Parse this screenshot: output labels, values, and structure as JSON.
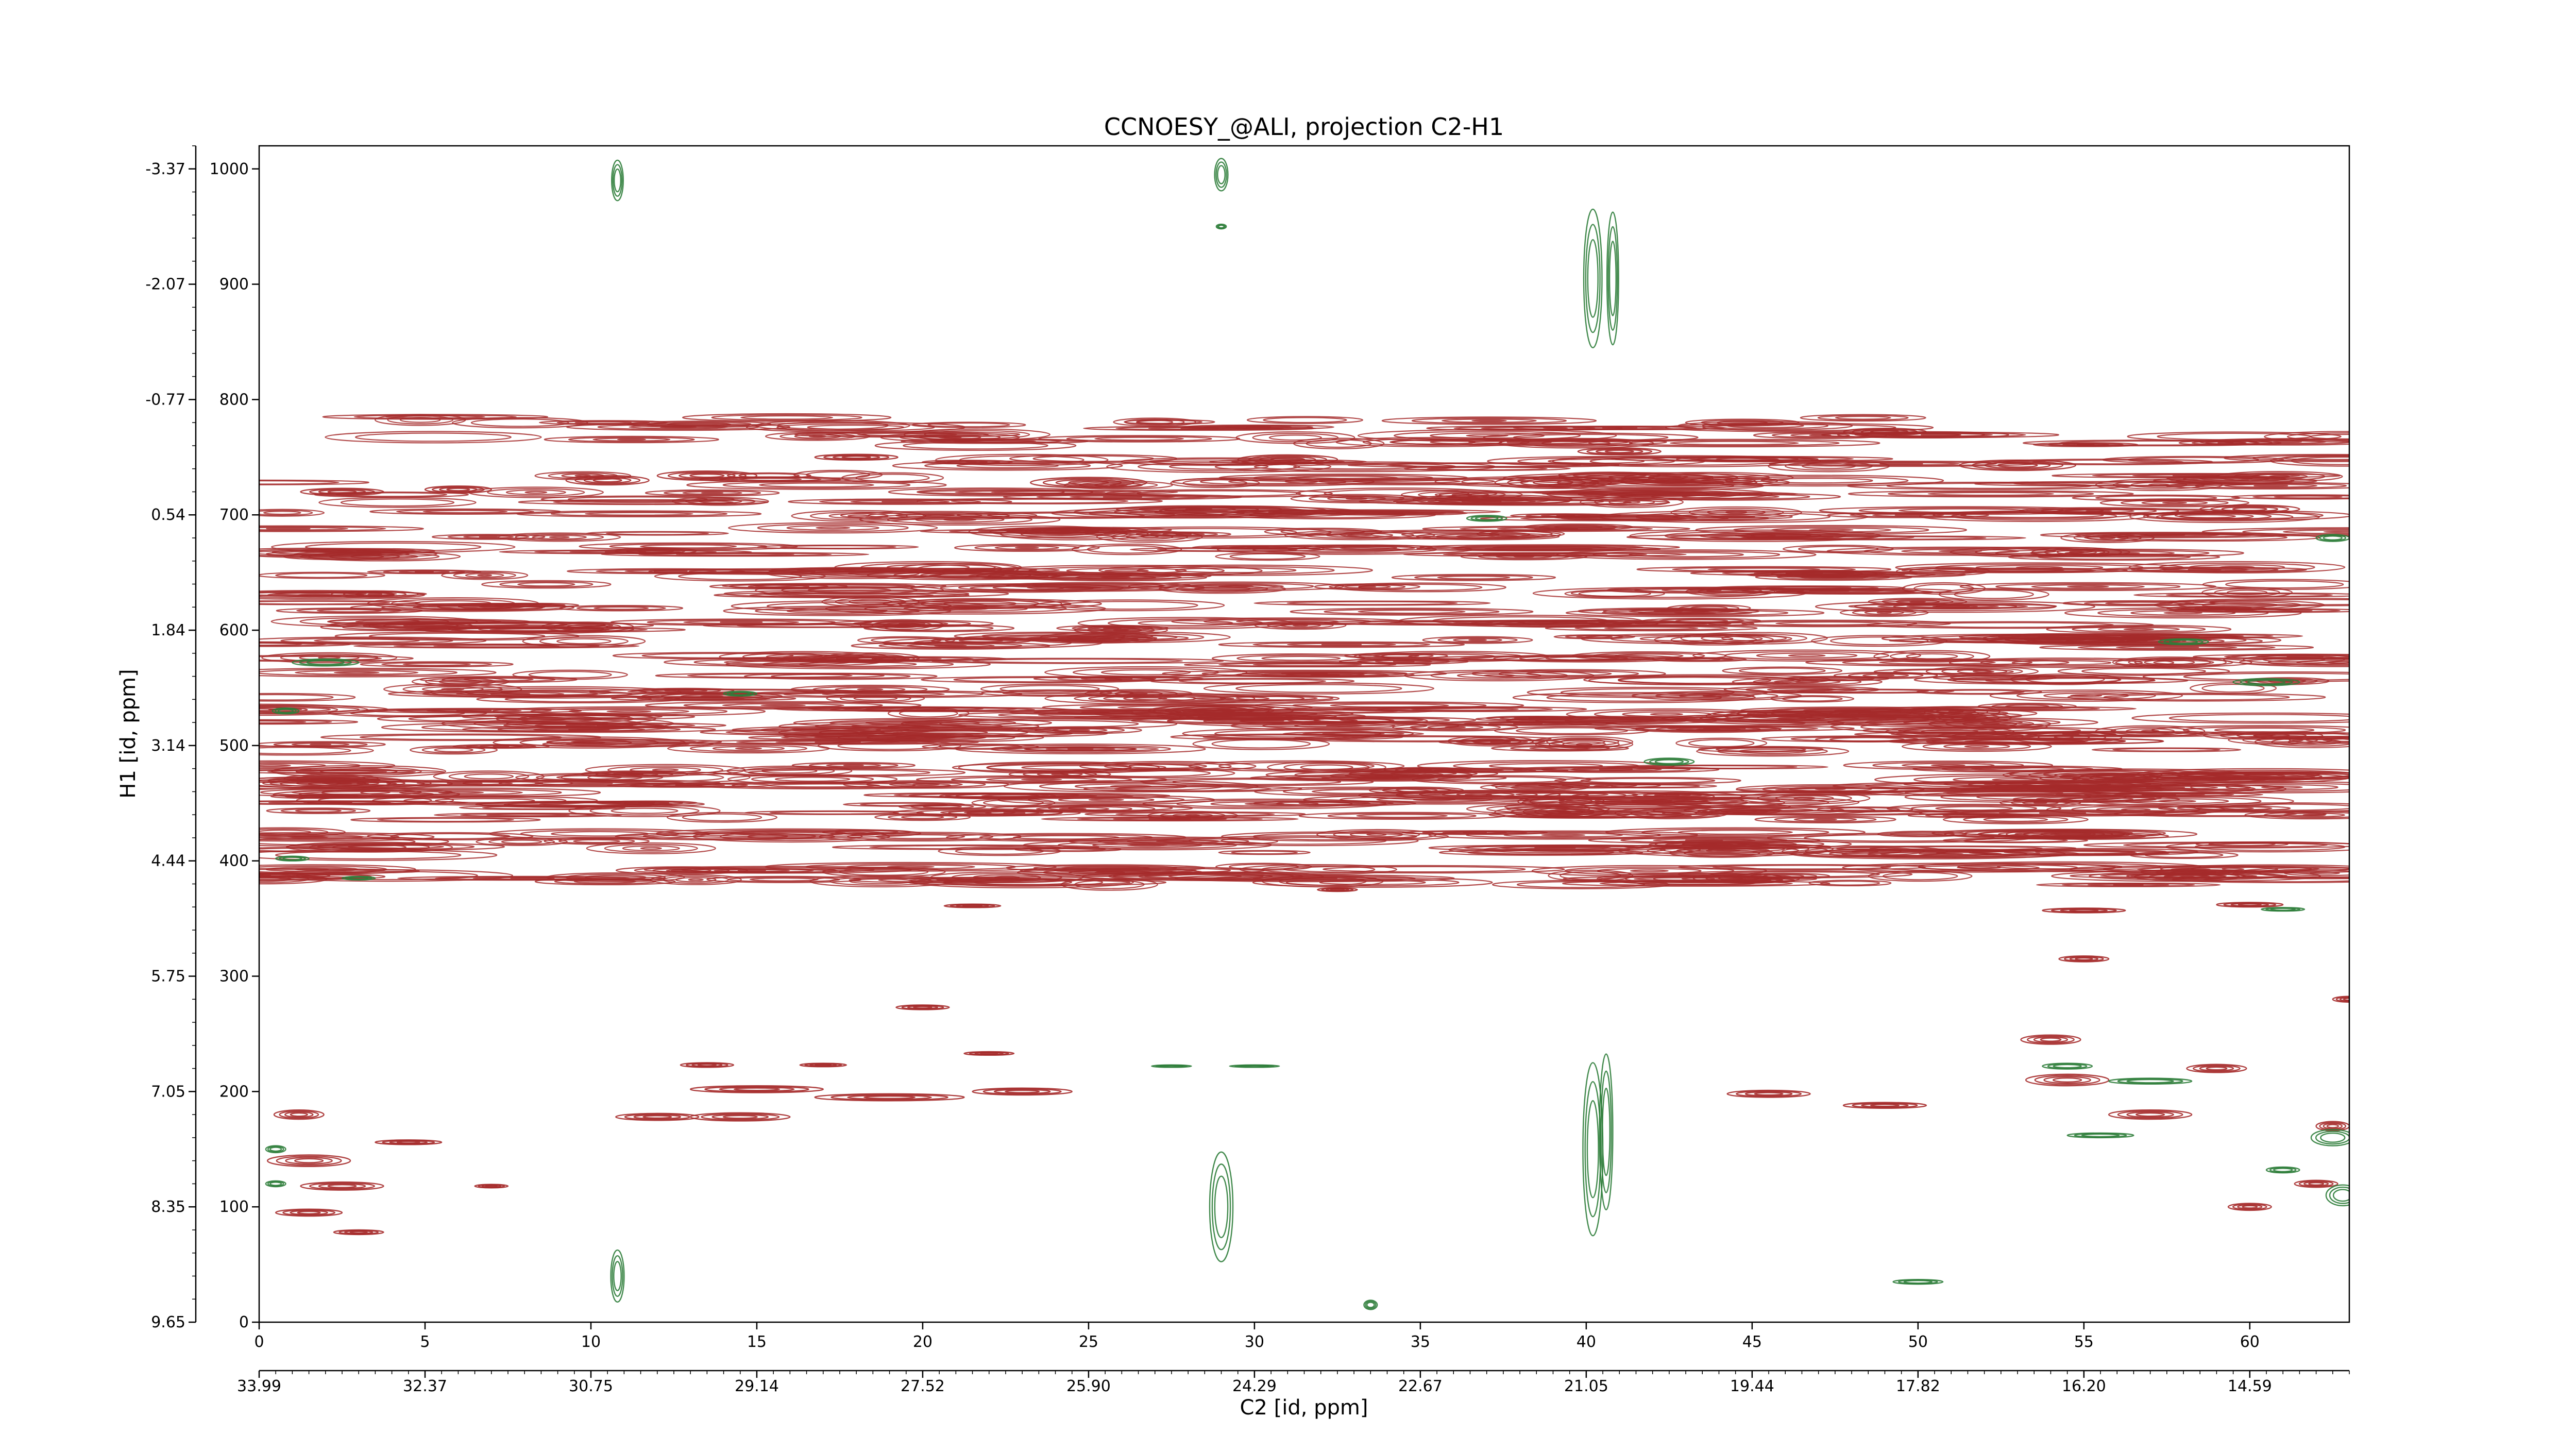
{
  "chart_data": {
    "type": "contour",
    "title": "CCNOESY_@ALI, projection C2-H1",
    "xlabel": "C2 [id, ppm]",
    "ylabel": "H1 [id, ppm]",
    "x_index_range": [
      0,
      63
    ],
    "y_index_range": [
      0,
      1020
    ],
    "x_index_ticks": [
      "0",
      "5",
      "10",
      "15",
      "20",
      "25",
      "30",
      "35",
      "40",
      "45",
      "50",
      "55",
      "60"
    ],
    "x_ppm_ticks": [
      "33.99",
      "32.37",
      "30.75",
      "29.14",
      "27.52",
      "25.90",
      "24.29",
      "22.67",
      "21.05",
      "19.44",
      "17.82",
      "16.20",
      "14.59"
    ],
    "y_index_ticks": [
      "0",
      "100",
      "200",
      "300",
      "400",
      "500",
      "600",
      "700",
      "800",
      "900",
      "1000"
    ],
    "y_ppm_ticks": [
      "9.65",
      "8.35",
      "7.05",
      "5.75",
      "4.44",
      "3.14",
      "1.84",
      "0.54",
      "-0.77",
      "-2.07",
      "-3.37"
    ],
    "colors": {
      "positive": "#a52a2a",
      "negative": "#2e7d3a",
      "axis": "#000000"
    },
    "series": [
      {
        "sign": "positive",
        "color": "#a52a2a",
        "bands": [
          {
            "y": 383,
            "x": [
              0,
              63
            ]
          },
          {
            "y": 390,
            "x": [
              0,
              63
            ]
          },
          {
            "y": 410,
            "x": [
              0,
              63
            ]
          },
          {
            "y": 420,
            "x": [
              0,
              63
            ]
          },
          {
            "y": 440,
            "x": [
              0,
              63
            ]
          },
          {
            "y": 450,
            "x": [
              0,
              63
            ]
          },
          {
            "y": 460,
            "x": [
              0,
              63
            ]
          },
          {
            "y": 470,
            "x": [
              0,
              63
            ]
          },
          {
            "y": 478,
            "x": [
              0,
              63
            ]
          },
          {
            "y": 500,
            "x": [
              0,
              63
            ]
          },
          {
            "y": 510,
            "x": [
              0,
              63
            ]
          },
          {
            "y": 520,
            "x": [
              0,
              63
            ]
          },
          {
            "y": 530,
            "x": [
              0,
              63
            ]
          },
          {
            "y": 545,
            "x": [
              0,
              63
            ]
          },
          {
            "y": 560,
            "x": [
              0,
              63
            ]
          },
          {
            "y": 575,
            "x": [
              0,
              63
            ]
          },
          {
            "y": 590,
            "x": [
              0,
              63
            ]
          },
          {
            "y": 605,
            "x": [
              0,
              63
            ]
          },
          {
            "y": 620,
            "x": [
              0,
              63
            ]
          },
          {
            "y": 635,
            "x": [
              0,
              63
            ]
          },
          {
            "y": 650,
            "x": [
              0,
              63
            ]
          },
          {
            "y": 668,
            "x": [
              0,
              63
            ]
          },
          {
            "y": 685,
            "x": [
              0,
              63
            ]
          },
          {
            "y": 700,
            "x": [
              0,
              63
            ]
          },
          {
            "y": 715,
            "x": [
              0,
              63
            ]
          },
          {
            "y": 730,
            "x": [
              0,
              63
            ]
          },
          {
            "y": 745,
            "x": [
              18,
              63
            ]
          },
          {
            "y": 765,
            "x": [
              5,
              63
            ]
          },
          {
            "y": 780,
            "x": [
              4,
              52
            ]
          }
        ],
        "peaks": [
          {
            "x": 2.5,
            "y": 720,
            "w": 2.5,
            "h": 6
          },
          {
            "x": 6,
            "y": 722,
            "w": 2,
            "h": 6
          },
          {
            "x": 10.5,
            "y": 730,
            "w": 2.5,
            "h": 8
          },
          {
            "x": 13.5,
            "y": 734,
            "w": 3,
            "h": 8
          },
          {
            "x": 18,
            "y": 750,
            "w": 2.5,
            "h": 5
          },
          {
            "x": 25,
            "y": 728,
            "w": 3.5,
            "h": 9
          },
          {
            "x": 31,
            "y": 748,
            "w": 3,
            "h": 8
          },
          {
            "x": 39,
            "y": 728,
            "w": 3.5,
            "h": 10
          },
          {
            "x": 41,
            "y": 755,
            "w": 2.5,
            "h": 6
          },
          {
            "x": 49,
            "y": 772,
            "w": 2.5,
            "h": 6
          },
          {
            "x": 53,
            "y": 743,
            "w": 3.5,
            "h": 9
          },
          {
            "x": 60,
            "y": 705,
            "w": 3,
            "h": 7
          },
          {
            "x": 20,
            "y": 273,
            "w": 1.6,
            "h": 4
          },
          {
            "x": 13.5,
            "y": 223,
            "w": 1.6,
            "h": 4
          },
          {
            "x": 17,
            "y": 223,
            "w": 1.4,
            "h": 3
          },
          {
            "x": 22,
            "y": 233,
            "w": 1.5,
            "h": 3
          },
          {
            "x": 15,
            "y": 202,
            "w": 4,
            "h": 6
          },
          {
            "x": 23,
            "y": 200,
            "w": 3,
            "h": 6
          },
          {
            "x": 19,
            "y": 195,
            "w": 4.5,
            "h": 6
          },
          {
            "x": 14.5,
            "y": 178,
            "w": 3,
            "h": 7
          },
          {
            "x": 12,
            "y": 178,
            "w": 2.5,
            "h": 6
          },
          {
            "x": 4.5,
            "y": 156,
            "w": 2,
            "h": 4
          },
          {
            "x": 1.2,
            "y": 180,
            "w": 1.5,
            "h": 8
          },
          {
            "x": 1.5,
            "y": 140,
            "w": 2.5,
            "h": 10
          },
          {
            "x": 2.5,
            "y": 118,
            "w": 2.5,
            "h": 7
          },
          {
            "x": 1.5,
            "y": 95,
            "w": 2,
            "h": 6
          },
          {
            "x": 3,
            "y": 78,
            "w": 1.5,
            "h": 4
          },
          {
            "x": 7,
            "y": 118,
            "w": 1,
            "h": 3
          },
          {
            "x": 45.5,
            "y": 198,
            "w": 2.5,
            "h": 6
          },
          {
            "x": 49,
            "y": 188,
            "w": 2.5,
            "h": 5
          },
          {
            "x": 54.5,
            "y": 210,
            "w": 2.5,
            "h": 10
          },
          {
            "x": 57,
            "y": 180,
            "w": 2.5,
            "h": 8
          },
          {
            "x": 54,
            "y": 245,
            "w": 1.8,
            "h": 8
          },
          {
            "x": 59,
            "y": 220,
            "w": 1.8,
            "h": 7
          },
          {
            "x": 63,
            "y": 280,
            "w": 1,
            "h": 5
          },
          {
            "x": 55,
            "y": 315,
            "w": 1.5,
            "h": 5
          },
          {
            "x": 60,
            "y": 100,
            "w": 1.3,
            "h": 6
          },
          {
            "x": 62,
            "y": 120,
            "w": 1.3,
            "h": 6
          },
          {
            "x": 62.5,
            "y": 170,
            "w": 1,
            "h": 8
          },
          {
            "x": 55,
            "y": 357,
            "w": 2.5,
            "h": 4
          },
          {
            "x": 60,
            "y": 362,
            "w": 2,
            "h": 4
          },
          {
            "x": 21.5,
            "y": 361,
            "w": 1.7,
            "h": 3
          },
          {
            "x": 32.5,
            "y": 375,
            "w": 1.2,
            "h": 3
          }
        ]
      },
      {
        "sign": "negative",
        "color": "#2e7d3a",
        "peaks": [
          {
            "x": 10.8,
            "y": 990,
            "w": 0.35,
            "h": 35
          },
          {
            "x": 29,
            "y": 995,
            "w": 0.4,
            "h": 28
          },
          {
            "x": 29,
            "y": 950,
            "w": 0.3,
            "h": 4
          },
          {
            "x": 10.8,
            "y": 40,
            "w": 0.4,
            "h": 45
          },
          {
            "x": 29,
            "y": 100,
            "w": 0.7,
            "h": 95
          },
          {
            "x": 33.5,
            "y": 15,
            "w": 0.4,
            "h": 8
          },
          {
            "x": 40.2,
            "y": 905,
            "w": 0.55,
            "h": 120
          },
          {
            "x": 40.8,
            "y": 905,
            "w": 0.35,
            "h": 115
          },
          {
            "x": 40.2,
            "y": 150,
            "w": 0.6,
            "h": 150
          },
          {
            "x": 40.6,
            "y": 165,
            "w": 0.4,
            "h": 135
          },
          {
            "x": 62.5,
            "y": 160,
            "w": 1.3,
            "h": 14
          },
          {
            "x": 62.8,
            "y": 110,
            "w": 1,
            "h": 18
          },
          {
            "x": 61,
            "y": 132,
            "w": 1,
            "h": 5
          },
          {
            "x": 0.5,
            "y": 150,
            "w": 0.6,
            "h": 6
          },
          {
            "x": 0.5,
            "y": 120,
            "w": 0.6,
            "h": 5
          },
          {
            "x": 2,
            "y": 572,
            "w": 2,
            "h": 6
          },
          {
            "x": 0.8,
            "y": 530,
            "w": 0.8,
            "h": 5
          },
          {
            "x": 1,
            "y": 402,
            "w": 1,
            "h": 4
          },
          {
            "x": 3,
            "y": 385,
            "w": 1,
            "h": 3
          },
          {
            "x": 27.5,
            "y": 222,
            "w": 1.2,
            "h": 2
          },
          {
            "x": 30,
            "y": 222,
            "w": 1.5,
            "h": 2
          },
          {
            "x": 57,
            "y": 209,
            "w": 2.5,
            "h": 5
          },
          {
            "x": 54.5,
            "y": 222,
            "w": 1.5,
            "h": 5
          },
          {
            "x": 55.5,
            "y": 162,
            "w": 2,
            "h": 4
          },
          {
            "x": 61,
            "y": 358,
            "w": 1.3,
            "h": 3
          },
          {
            "x": 50,
            "y": 35,
            "w": 1.5,
            "h": 4
          },
          {
            "x": 60.5,
            "y": 555,
            "w": 2,
            "h": 6
          },
          {
            "x": 58,
            "y": 590,
            "w": 1.5,
            "h": 5
          },
          {
            "x": 62.5,
            "y": 680,
            "w": 1,
            "h": 6
          },
          {
            "x": 37,
            "y": 697,
            "w": 1.2,
            "h": 5
          },
          {
            "x": 42.5,
            "y": 486,
            "w": 1.5,
            "h": 6
          },
          {
            "x": 14.5,
            "y": 545,
            "w": 1,
            "h": 4
          }
        ]
      }
    ]
  }
}
